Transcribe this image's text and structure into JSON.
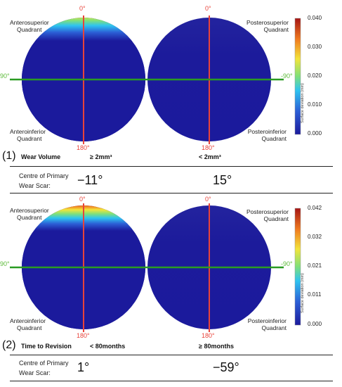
{
  "colors": {
    "blue": "#1b1a9c",
    "red": "#e8433a",
    "green": "#2a9b22",
    "green_label": "#5dbb3a"
  },
  "panels": [
    {
      "number": "(1)",
      "angle_top": "0°",
      "angle_bottom": "180°",
      "angle_left": "90°",
      "angle_right": "-90°",
      "quadrants": {
        "anterosuperior": [
          "Anterosuperior",
          "Quadrant"
        ],
        "posterosuperior": [
          "Posterosuperior",
          "Quadrant"
        ],
        "anteroinferior": [
          "Anteroinferior",
          "Quadrant"
        ],
        "posteroinferior": [
          "Posteroinferior",
          "Quadrant"
        ]
      },
      "colorbar": {
        "ticks": [
          "0.040",
          "0.030",
          "0.020",
          "0.010",
          "0.000"
        ],
        "title": "Surface deviation (mm)"
      },
      "row_label": "Wear Volume",
      "row_left_value": "≥ 2mm³",
      "row_right_value": "< 2mm³",
      "centre_label": [
        "Centre of Primary",
        "Wear Scar:"
      ],
      "centre_left": "−11°",
      "centre_right": "15°"
    },
    {
      "number": "(2)",
      "angle_top": "0°",
      "angle_bottom": "180°",
      "angle_left": "90°",
      "angle_right": "-90°",
      "quadrants": {
        "anterosuperior": [
          "Anterosuperior",
          "Quadrant"
        ],
        "posterosuperior": [
          "Posterosuperior",
          "Quadrant"
        ],
        "anteroinferior": [
          "Anteroinferior",
          "Quadrant"
        ],
        "posteroinferior": [
          "Posteroinferior",
          "Quadrant"
        ]
      },
      "colorbar": {
        "ticks": [
          "0.042",
          "0.032",
          "0.021",
          "0.011",
          "0.000"
        ],
        "title": "Surface deviation (mm)"
      },
      "row_label": "Time to Revision",
      "row_left_value": "< 80months",
      "row_right_value": "≥ 80months",
      "centre_label": [
        "Centre of Primary",
        "Wear Scar:"
      ],
      "centre_left": "1°",
      "centre_right": "−59°"
    }
  ]
}
